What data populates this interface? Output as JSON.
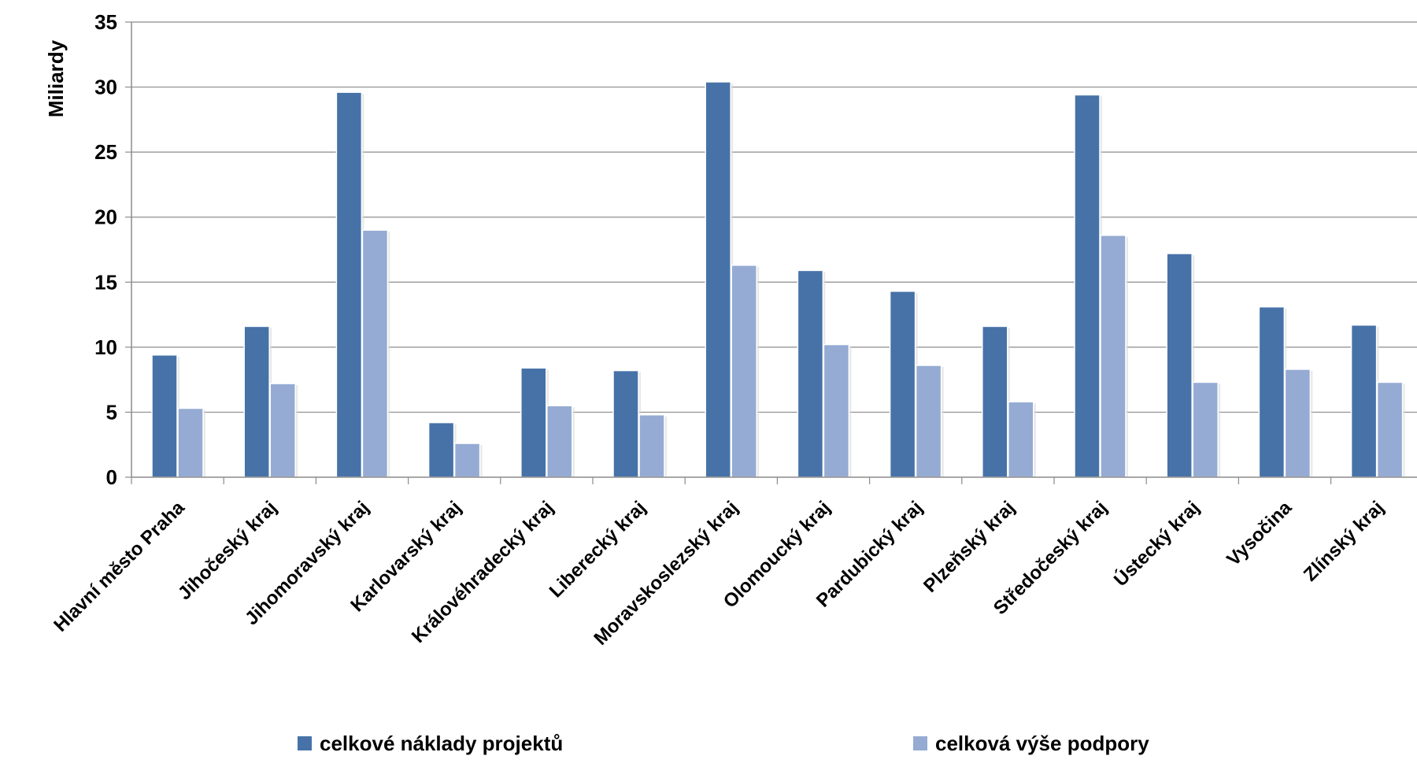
{
  "chart_data": {
    "type": "bar",
    "title": "",
    "xlabel": "",
    "ylabel": "Miliardy",
    "ylim": [
      0,
      35
    ],
    "yticks": [
      0,
      5,
      10,
      15,
      20,
      25,
      30,
      35
    ],
    "grid": true,
    "legend_position": "bottom",
    "categories": [
      "Hlavní město Praha",
      "Jihočeský kraj",
      "Jihomoravský kraj",
      "Karlovarský kraj",
      "Královéhradecký kraj",
      "Liberecký kraj",
      "Moravskoslezský  kraj",
      "Olomoucký kraj",
      "Pardubický kraj",
      "Plzeňský kraj",
      "Středočeský kraj",
      "Ústecký kraj",
      "Vysočina",
      "Zlínský kraj"
    ],
    "series": [
      {
        "name": "celkové náklady projektů",
        "color": "#4672a8",
        "values": [
          9.4,
          11.6,
          29.6,
          4.2,
          8.4,
          8.2,
          30.4,
          15.9,
          14.3,
          11.6,
          29.4,
          17.2,
          13.1,
          11.7
        ]
      },
      {
        "name": "celková výše podpory",
        "color": "#95abd3",
        "values": [
          5.3,
          7.2,
          19.0,
          2.6,
          5.5,
          4.8,
          16.3,
          10.2,
          8.6,
          5.8,
          18.6,
          7.3,
          8.3,
          7.3
        ]
      }
    ]
  }
}
